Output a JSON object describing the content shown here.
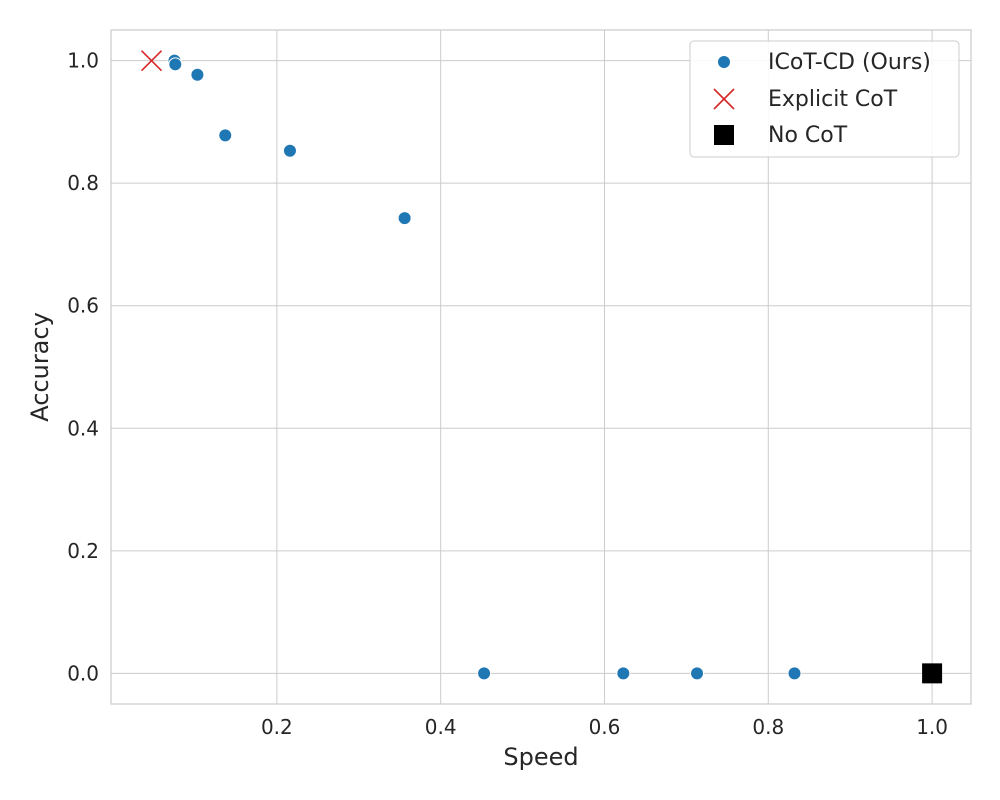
{
  "chart_data": {
    "type": "scatter",
    "title": "",
    "xlabel": "Speed",
    "ylabel": "Accuracy",
    "xlim": [
      -0.0025,
      1.0475
    ],
    "ylim": [
      -0.05,
      1.05
    ],
    "x_ticks": [
      0.2,
      0.4,
      0.6,
      0.8,
      1.0
    ],
    "x_tick_labels": [
      "0.2",
      "0.4",
      "0.6",
      "0.8",
      "1.0"
    ],
    "y_ticks": [
      0.0,
      0.2,
      0.4,
      0.6,
      0.8,
      1.0
    ],
    "y_tick_labels": [
      "0.0",
      "0.2",
      "0.4",
      "0.6",
      "0.8",
      "1.0"
    ],
    "grid": true,
    "legend_position": "top-right",
    "series": [
      {
        "name": "ICoT-CD (Ours)",
        "marker": "circle",
        "color": "#1f77b4",
        "points": [
          {
            "x": 0.075,
            "y": 1.0
          },
          {
            "x": 0.076,
            "y": 0.994
          },
          {
            "x": 0.103,
            "y": 0.977
          },
          {
            "x": 0.137,
            "y": 0.878
          },
          {
            "x": 0.216,
            "y": 0.853
          },
          {
            "x": 0.356,
            "y": 0.743
          },
          {
            "x": 0.453,
            "y": 0.0
          },
          {
            "x": 0.623,
            "y": 0.0
          },
          {
            "x": 0.713,
            "y": 0.0
          },
          {
            "x": 0.832,
            "y": 0.0
          }
        ]
      },
      {
        "name": "Explicit CoT",
        "marker": "x",
        "color": "#d62728",
        "points": [
          {
            "x": 0.047,
            "y": 1.0
          }
        ]
      },
      {
        "name": "No CoT",
        "marker": "square",
        "color": "#000000",
        "points": [
          {
            "x": 1.0,
            "y": 0.0
          }
        ]
      }
    ]
  }
}
